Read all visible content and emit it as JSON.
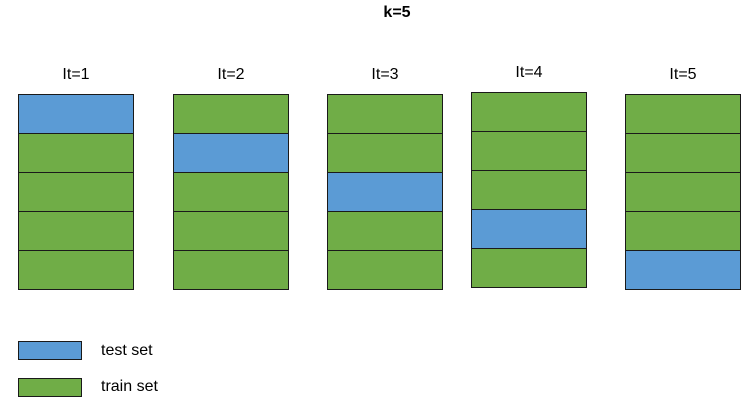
{
  "title": "k=5",
  "colors": {
    "test": "#5b9bd5",
    "train": "#70ad47"
  },
  "folds": [
    {
      "label": "It=1",
      "blocks": [
        "test",
        "train",
        "train",
        "train",
        "train"
      ]
    },
    {
      "label": "It=2",
      "blocks": [
        "train",
        "test",
        "train",
        "train",
        "train"
      ]
    },
    {
      "label": "It=3",
      "blocks": [
        "train",
        "train",
        "test",
        "train",
        "train"
      ]
    },
    {
      "label": "It=4",
      "blocks": [
        "train",
        "train",
        "train",
        "test",
        "train"
      ]
    },
    {
      "label": "It=5",
      "blocks": [
        "train",
        "train",
        "train",
        "train",
        "test"
      ]
    }
  ],
  "legend": [
    {
      "key": "test",
      "label": "test set"
    },
    {
      "key": "train",
      "label": "train set"
    }
  ]
}
